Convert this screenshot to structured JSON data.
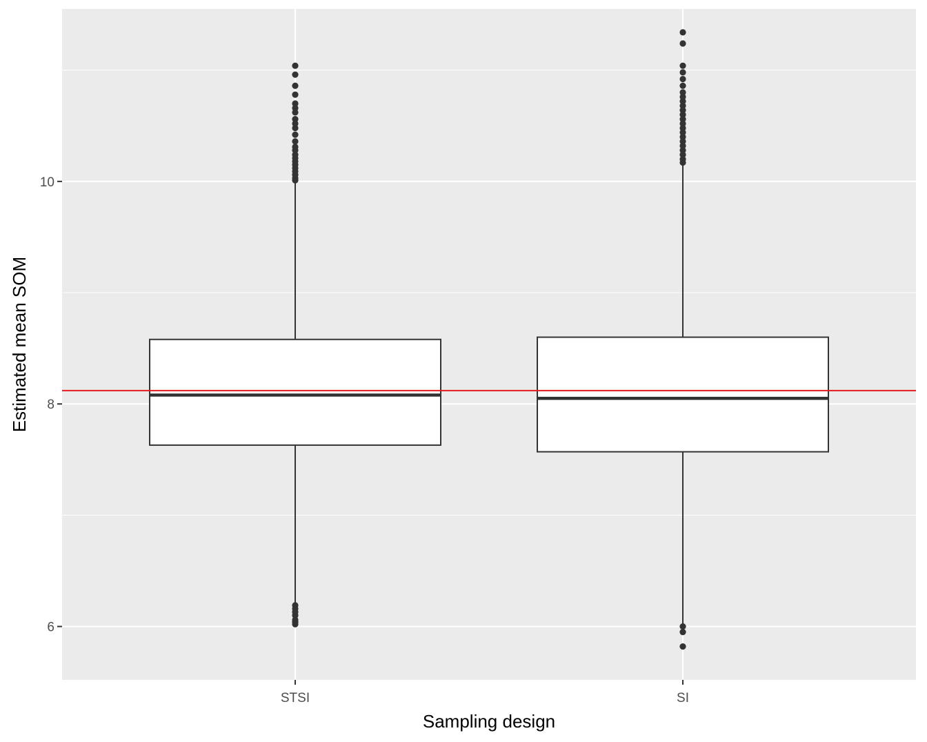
{
  "chart_data": {
    "type": "box",
    "xlabel": "Sampling design",
    "ylabel": "Estimated mean SOM",
    "categories": [
      "STSI",
      "SI"
    ],
    "ylim": [
      5.52,
      11.55
    ],
    "yticks": [
      6,
      8,
      10
    ],
    "ytick_labels": [
      "6",
      "8",
      "10"
    ],
    "y_minor_gridlines": [
      7,
      9,
      11
    ],
    "grid": true,
    "reference_line": {
      "y": 8.12,
      "color": "#e41a1c"
    },
    "boxes": [
      {
        "category": "STSI",
        "q1": 7.63,
        "median": 8.08,
        "q3": 8.58,
        "whisker_low": 6.2,
        "whisker_high": 10.0,
        "outliers": [
          6.02,
          6.04,
          6.06,
          6.1,
          6.13,
          6.16,
          6.19,
          10.01,
          10.03,
          10.06,
          10.09,
          10.12,
          10.15,
          10.18,
          10.21,
          10.24,
          10.28,
          10.31,
          10.36,
          10.42,
          10.48,
          10.52,
          10.56,
          10.62,
          10.66,
          10.7,
          10.78,
          10.86,
          10.96,
          11.04
        ]
      },
      {
        "category": "SI",
        "q1": 7.57,
        "median": 8.05,
        "q3": 8.6,
        "whisker_low": 6.0,
        "whisker_high": 10.15,
        "outliers": [
          5.82,
          5.95,
          6.0,
          10.17,
          10.2,
          10.24,
          10.28,
          10.32,
          10.36,
          10.4,
          10.44,
          10.48,
          10.52,
          10.56,
          10.6,
          10.64,
          10.68,
          10.72,
          10.76,
          10.8,
          10.86,
          10.92,
          10.98,
          11.04,
          11.24,
          11.34
        ]
      }
    ],
    "colors": {
      "panel": "#ebebeb",
      "grid": "#ffffff",
      "box_fill": "#ffffff",
      "box_stroke": "#333333",
      "outlier": "#333333",
      "tick": "#333333"
    }
  }
}
